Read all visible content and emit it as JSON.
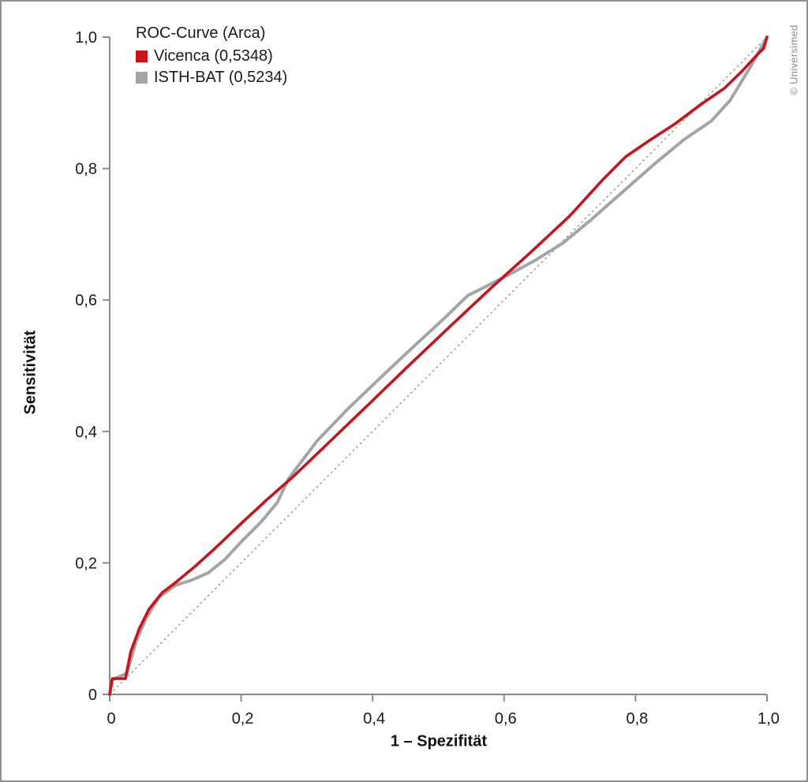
{
  "figure": {
    "watermark": "© Universimed"
  },
  "colors": {
    "axis": "#8a8a8a",
    "tick_label": "#1a1a1a",
    "diagonal": "#8c8c8c",
    "vicenca_red": "#c4161c",
    "isthbat_gray": "#a3a5a7"
  },
  "chart_data": {
    "type": "line",
    "title": "ROC-Curve (Arca)",
    "xlabel": "1 – Spezifität",
    "ylabel": "Sensitivität",
    "xlim": [
      0,
      1
    ],
    "ylim": [
      0,
      1
    ],
    "grid": false,
    "legend_position": "top-left",
    "x_ticks": [
      {
        "v": 0,
        "label": "0"
      },
      {
        "v": 0.2,
        "label": "0,2"
      },
      {
        "v": 0.4,
        "label": "0,4"
      },
      {
        "v": 0.6,
        "label": "0,6"
      },
      {
        "v": 0.8,
        "label": "0,8"
      },
      {
        "v": 1,
        "label": "1,0"
      }
    ],
    "y_ticks": [
      {
        "v": 0,
        "label": "0"
      },
      {
        "v": 0.2,
        "label": "0,2"
      },
      {
        "v": 0.4,
        "label": "0,4"
      },
      {
        "v": 0.6,
        "label": "0,6"
      },
      {
        "v": 0.8,
        "label": "0,8"
      },
      {
        "v": 1,
        "label": "1,0"
      }
    ],
    "reference_line": {
      "name": "chance-diagonal",
      "from": [
        0,
        0
      ],
      "to": [
        1,
        1
      ],
      "style": "dashed",
      "color": "#8c8c8c"
    },
    "series": [
      {
        "name": "Vicenca",
        "auc": 0.5348,
        "auc_label": "Vicenca (0,5348)",
        "color": "#c4161c",
        "stroke_width": 3.6,
        "points": [
          [
            0,
            0
          ],
          [
            0.004,
            0.024
          ],
          [
            0.024,
            0.024
          ],
          [
            0.032,
            0.065
          ],
          [
            0.045,
            0.1
          ],
          [
            0.06,
            0.13
          ],
          [
            0.08,
            0.155
          ],
          [
            0.1,
            0.17
          ],
          [
            0.13,
            0.195
          ],
          [
            0.16,
            0.222
          ],
          [
            0.2,
            0.26
          ],
          [
            0.24,
            0.297
          ],
          [
            0.28,
            0.332
          ],
          [
            0.33,
            0.38
          ],
          [
            0.4,
            0.447
          ],
          [
            0.46,
            0.505
          ],
          [
            0.52,
            0.562
          ],
          [
            0.58,
            0.618
          ],
          [
            0.64,
            0.672
          ],
          [
            0.7,
            0.728
          ],
          [
            0.75,
            0.783
          ],
          [
            0.785,
            0.818
          ],
          [
            0.82,
            0.842
          ],
          [
            0.86,
            0.868
          ],
          [
            0.9,
            0.898
          ],
          [
            0.935,
            0.922
          ],
          [
            0.962,
            0.948
          ],
          [
            0.985,
            0.973
          ],
          [
            0.995,
            0.983
          ],
          [
            1,
            1
          ]
        ]
      },
      {
        "name": "ISTH-BAT",
        "auc": 0.5234,
        "auc_label": "ISTH-BAT (0,5234)",
        "color": "#a3a5a7",
        "stroke_width": 4,
        "points": [
          [
            0,
            0
          ],
          [
            0.004,
            0.022
          ],
          [
            0.012,
            0.026
          ],
          [
            0.026,
            0.032
          ],
          [
            0.04,
            0.08
          ],
          [
            0.055,
            0.115
          ],
          [
            0.075,
            0.148
          ],
          [
            0.1,
            0.166
          ],
          [
            0.125,
            0.174
          ],
          [
            0.15,
            0.185
          ],
          [
            0.175,
            0.205
          ],
          [
            0.2,
            0.232
          ],
          [
            0.23,
            0.262
          ],
          [
            0.255,
            0.292
          ],
          [
            0.272,
            0.328
          ],
          [
            0.29,
            0.352
          ],
          [
            0.315,
            0.385
          ],
          [
            0.36,
            0.432
          ],
          [
            0.41,
            0.48
          ],
          [
            0.46,
            0.527
          ],
          [
            0.51,
            0.573
          ],
          [
            0.545,
            0.607
          ],
          [
            0.575,
            0.622
          ],
          [
            0.61,
            0.64
          ],
          [
            0.65,
            0.662
          ],
          [
            0.69,
            0.687
          ],
          [
            0.73,
            0.72
          ],
          [
            0.78,
            0.764
          ],
          [
            0.83,
            0.808
          ],
          [
            0.875,
            0.845
          ],
          [
            0.915,
            0.872
          ],
          [
            0.944,
            0.904
          ],
          [
            0.975,
            0.955
          ],
          [
            1,
            1
          ]
        ]
      }
    ]
  }
}
